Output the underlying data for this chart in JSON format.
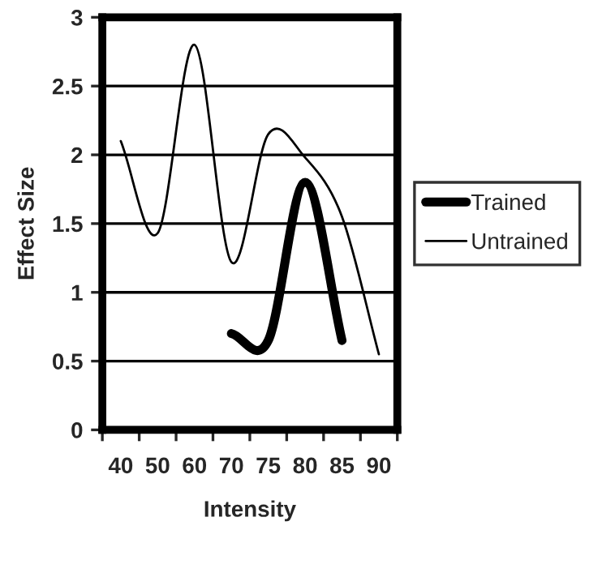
{
  "chart_data": {
    "type": "line",
    "xlabel": "Intensity",
    "ylabel": "Effect Size",
    "categories": [
      "40",
      "50",
      "60",
      "70",
      "75",
      "80",
      "85",
      "90"
    ],
    "series": [
      {
        "name": "Trained",
        "color": "#000000",
        "values": [
          null,
          null,
          null,
          0.7,
          0.65,
          1.8,
          0.65,
          null
        ]
      },
      {
        "name": "Untrained",
        "color": "#000000",
        "values": [
          2.1,
          1.43,
          2.8,
          1.22,
          2.15,
          1.98,
          1.55,
          0.55
        ]
      }
    ],
    "ylim": [
      0,
      3
    ],
    "yticks": [
      0,
      0.5,
      1,
      1.5,
      2,
      2.5,
      3
    ],
    "grid": "y",
    "legend": "right"
  }
}
